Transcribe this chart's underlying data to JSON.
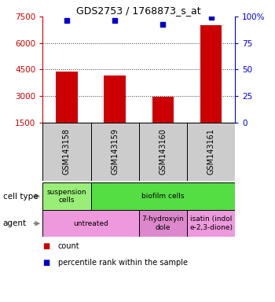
{
  "title": "GDS2753 / 1768873_s_at",
  "samples": [
    "GSM143158",
    "GSM143159",
    "GSM143160",
    "GSM143161"
  ],
  "counts": [
    4400,
    4150,
    2950,
    7000
  ],
  "percentile_ranks": [
    96,
    96,
    93,
    99
  ],
  "ylim_left": [
    1500,
    7500
  ],
  "ylim_right": [
    0,
    100
  ],
  "yticks_left": [
    1500,
    3000,
    4500,
    6000,
    7500
  ],
  "yticks_right": [
    0,
    25,
    50,
    75,
    100
  ],
  "ytick_labels_right": [
    "0",
    "25",
    "50",
    "75",
    "100%"
  ],
  "bar_color": "#cc0000",
  "dot_color": "#0000cc",
  "left_tick_color": "#cc0000",
  "right_tick_color": "#0000cc",
  "cell_type_row": {
    "label": "cell type",
    "cells": [
      {
        "text": "suspension\ncells",
        "color": "#99ee77",
        "span": 1
      },
      {
        "text": "biofilm cells",
        "color": "#55dd44",
        "span": 3
      }
    ]
  },
  "agent_row": {
    "label": "agent",
    "cells": [
      {
        "text": "untreated",
        "color": "#ee99dd",
        "span": 2
      },
      {
        "text": "7-hydroxyin\ndole",
        "color": "#dd88cc",
        "span": 1
      },
      {
        "text": "isatin (indol\ne-2,3-dione)",
        "color": "#ee99dd",
        "span": 1
      }
    ]
  },
  "legend_items": [
    {
      "color": "#cc0000",
      "label": "count"
    },
    {
      "color": "#0000cc",
      "label": "percentile rank within the sample"
    }
  ],
  "sample_box_color": "#cccccc",
  "grid_color": "#333333",
  "bar_width": 0.45
}
